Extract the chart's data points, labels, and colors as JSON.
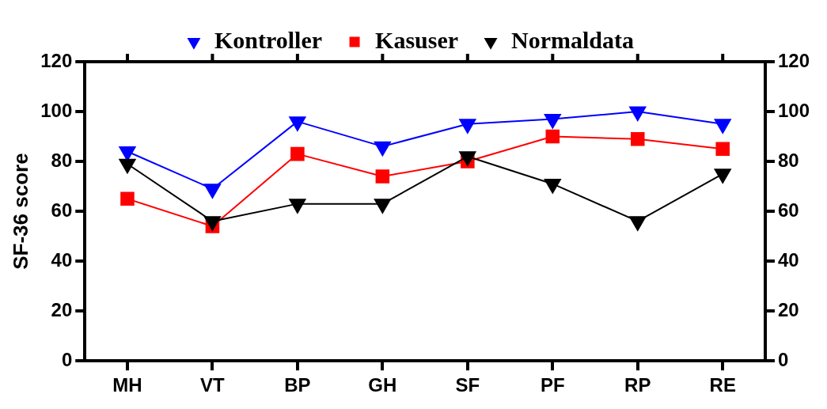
{
  "chart_data": {
    "type": "line",
    "ylabel": "SF-36 score",
    "categories": [
      "MH",
      "VT",
      "BP",
      "GH",
      "SF",
      "PF",
      "RP",
      "RE"
    ],
    "series": [
      {
        "name": "Kontroller",
        "color": "#0000ff",
        "marker": "triangle",
        "values": [
          84,
          69,
          96,
          86,
          95,
          97,
          100,
          95
        ]
      },
      {
        "name": "Kasuser",
        "color": "#ff0000",
        "marker": "square",
        "values": [
          65,
          54,
          83,
          74,
          80,
          90,
          89,
          85
        ]
      },
      {
        "name": "Normaldata",
        "color": "#000000",
        "marker": "triangle",
        "values": [
          79,
          56,
          63,
          63,
          82,
          71,
          56,
          75
        ]
      }
    ],
    "ylim": [
      0,
      120
    ],
    "yticks": [
      0,
      20,
      40,
      60,
      80,
      100,
      120
    ],
    "y2lim": [
      0,
      120
    ],
    "y2ticks": [
      0,
      20,
      40,
      60,
      80,
      100,
      120
    ],
    "grid": false,
    "legend": "top",
    "line_style": "solid"
  }
}
